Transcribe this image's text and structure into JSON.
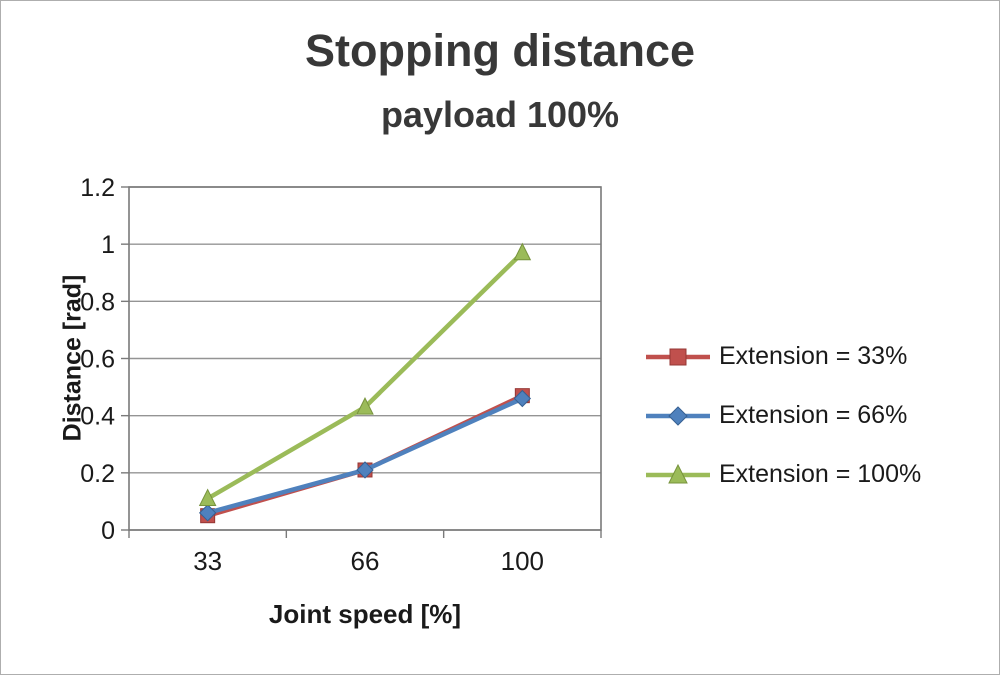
{
  "chart_data": {
    "type": "line",
    "title": "Stopping distance",
    "subtitle": "payload 100%",
    "xlabel": "Joint speed [%]",
    "ylabel": "Distance [rad]",
    "categories": [
      "33",
      "66",
      "100"
    ],
    "series": [
      {
        "name": "Extension = 33%",
        "color": "#c0504d",
        "edge": "#953735",
        "marker": "square",
        "values": [
          0.05,
          0.21,
          0.47
        ]
      },
      {
        "name": "Extension = 66%",
        "color": "#4f81bd",
        "edge": "#366092",
        "marker": "diamond",
        "values": [
          0.06,
          0.21,
          0.46
        ]
      },
      {
        "name": "Extension = 100%",
        "color": "#9bbb59",
        "edge": "#77933c",
        "marker": "triangle",
        "values": [
          0.11,
          0.43,
          0.97
        ]
      }
    ],
    "ylim": [
      0,
      1.2
    ],
    "ytick_step": 0.2,
    "grid": true,
    "legend_position": "right",
    "colors": {
      "gridline": "#949494",
      "plot_border": "#7a7a7a",
      "tick_mark": "#7a7a7a",
      "text": "#1a1a1a"
    }
  }
}
